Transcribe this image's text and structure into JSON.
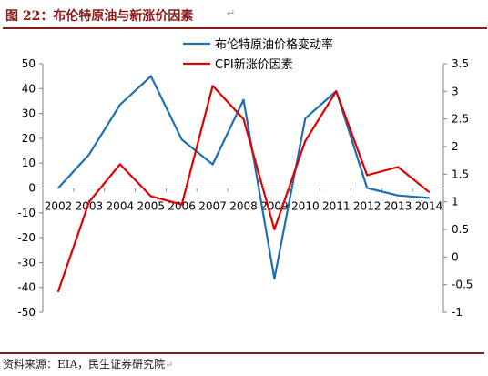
{
  "header": {
    "title": "图 22：布伦特原油与新涨价因素",
    "title_mark": "↵"
  },
  "footer": {
    "source": "资料来源：EIA，民生证券研究院",
    "source_mark": "↵"
  },
  "chart_data": {
    "type": "line",
    "title": "",
    "categories": [
      "2002",
      "2003",
      "2004",
      "2005",
      "2006",
      "2007",
      "2008",
      "2009",
      "2010",
      "2011",
      "2012",
      "2013",
      "2014"
    ],
    "series": [
      {
        "name": "布伦特原油价格变动率",
        "axis": "left",
        "color": "#1f6fb0",
        "values": [
          0,
          13.5,
          33.5,
          45,
          19.5,
          9.5,
          35.5,
          -36.5,
          28,
          39,
          0,
          -3,
          -4
        ]
      },
      {
        "name": "CPI新涨价因素",
        "axis": "right",
        "color": "#e00000",
        "values": [
          -0.62,
          1.0,
          1.68,
          1.1,
          0.95,
          3.1,
          2.5,
          0.5,
          2.1,
          3.0,
          1.48,
          1.63,
          1.18
        ]
      }
    ],
    "y_left": {
      "ylim": [
        -50,
        50
      ],
      "ticks": [
        50,
        40,
        30,
        20,
        10,
        0,
        -10,
        -20,
        -30,
        -40,
        -50
      ]
    },
    "y_right": {
      "ylim": [
        -1,
        3.5
      ],
      "ticks": [
        "3.5",
        "3",
        "2.5",
        "2",
        "1.5",
        "1",
        "0.5",
        "0",
        "-0.5",
        "-1"
      ]
    },
    "xlabel": "",
    "ylabel": "",
    "grid": false,
    "legend": "top-center"
  }
}
